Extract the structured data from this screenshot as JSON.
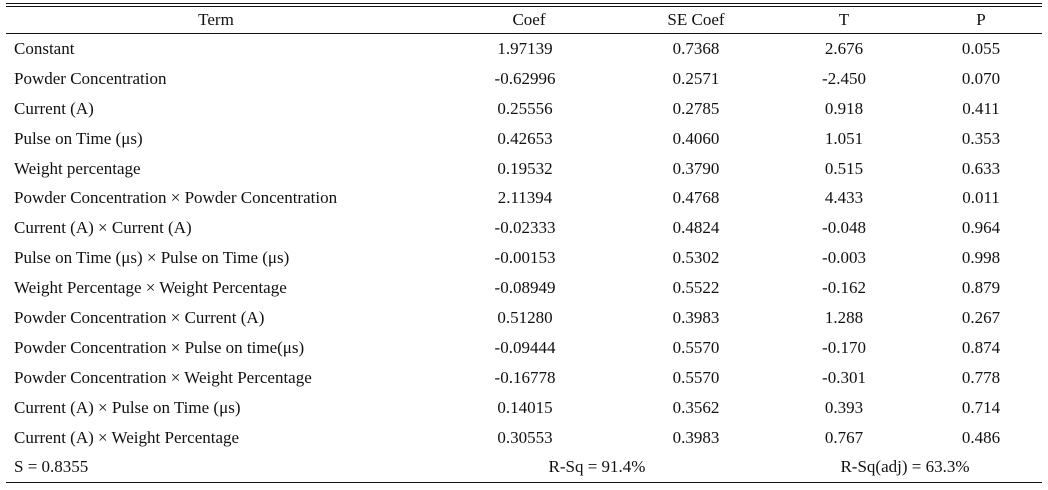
{
  "columns": [
    "Term",
    "Coef",
    "SE Coef",
    "T",
    "P"
  ],
  "rows": [
    {
      "term": "Constant",
      "coef": "1.97139",
      "se": "0.7368",
      "t": "2.676",
      "p": "0.055"
    },
    {
      "term": "Powder Concentration",
      "coef": "-0.62996",
      "se": "0.2571",
      "t": "-2.450",
      "p": "0.070"
    },
    {
      "term": "Current (A)",
      "coef": "0.25556",
      "se": "0.2785",
      "t": "0.918",
      "p": "0.411"
    },
    {
      "term": "Pulse on Time (μs)",
      "coef": "0.42653",
      "se": "0.4060",
      "t": "1.051",
      "p": "0.353"
    },
    {
      "term": "Weight percentage",
      "coef": "0.19532",
      "se": "0.3790",
      "t": "0.515",
      "p": "0.633"
    },
    {
      "term": "Powder Concentration × Powder Concentration",
      "coef": "2.11394",
      "se": "0.4768",
      "t": "4.433",
      "p": "0.011"
    },
    {
      "term": "Current (A) × Current (A)",
      "coef": "-0.02333",
      "se": "0.4824",
      "t": "-0.048",
      "p": "0.964"
    },
    {
      "term": "Pulse on Time (μs) × Pulse on Time (μs)",
      "coef": "-0.00153",
      "se": "0.5302",
      "t": "-0.003",
      "p": "0.998"
    },
    {
      "term": "Weight Percentage × Weight Percentage",
      "coef": "-0.08949",
      "se": "0.5522",
      "t": "-0.162",
      "p": "0.879"
    },
    {
      "term": "Powder Concentration × Current (A)",
      "coef": "0.51280",
      "se": "0.3983",
      "t": "1.288",
      "p": "0.267"
    },
    {
      "term": "Powder Concentration × Pulse on time(μs)",
      "coef": "-0.09444",
      "se": "0.5570",
      "t": "-0.170",
      "p": "0.874"
    },
    {
      "term": "Powder Concentration × Weight Percentage",
      "coef": "-0.16778",
      "se": "0.5570",
      "t": "-0.301",
      "p": "0.778"
    },
    {
      "term": "Current (A) × Pulse on Time (μs)",
      "coef": "0.14015",
      "se": "0.3562",
      "t": "0.393",
      "p": "0.714"
    },
    {
      "term": "Current (A) × Weight Percentage",
      "coef": "0.30553",
      "se": "0.3983",
      "t": "0.767",
      "p": "0.486"
    }
  ],
  "summary": {
    "s": "S = 0.8355",
    "rsq": "R-Sq = 91.4%",
    "rsq_adj": "R-Sq(adj) = 63.3%"
  }
}
